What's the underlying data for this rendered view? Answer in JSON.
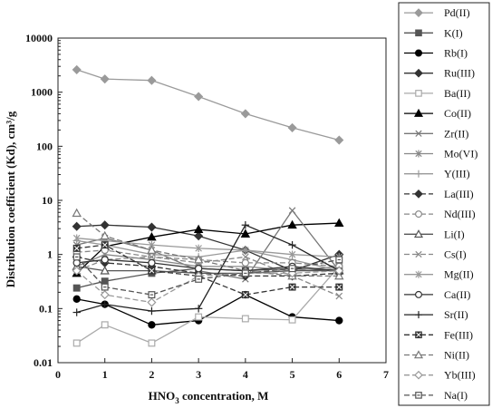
{
  "chart_data": {
    "type": "line",
    "title": "",
    "xlabel_main": "HNO",
    "xlabel_sub": "3",
    "xlabel_rest": " concentration, M",
    "ylabel": "Distribution coefficient (Kd), cm³/g",
    "xlim": [
      0,
      7
    ],
    "ylim": [
      0.01,
      10000
    ],
    "yscale": "log",
    "grid": "none",
    "legend_position": "right",
    "x_ticks": [
      "0",
      "1",
      "2",
      "3",
      "4",
      "5",
      "6",
      "7"
    ],
    "y_ticks": [
      "0.01",
      "0.1",
      "1",
      "10",
      "100",
      "1000",
      "10000"
    ],
    "x": [
      0.4,
      1,
      2,
      3,
      4,
      5,
      6
    ],
    "series": [
      {
        "name": "Pd(II)",
        "marker": "diamond-filled",
        "color": "#9a9a9a",
        "dash": "",
        "values": [
          2600,
          1750,
          1650,
          830,
          400,
          220,
          130
        ]
      },
      {
        "name": "K(I)",
        "marker": "square-filled",
        "color": "#555555",
        "dash": "",
        "values": [
          0.24,
          0.32,
          0.45,
          0.55,
          0.5,
          0.55,
          0.5
        ]
      },
      {
        "name": "Rb(I)",
        "marker": "circle-filled",
        "color": "#000000",
        "dash": "",
        "values": [
          0.15,
          0.12,
          0.05,
          0.06,
          0.18,
          0.07,
          0.06
        ]
      },
      {
        "name": "Ru(III)",
        "marker": "diamond-filled",
        "color": "#333333",
        "dash": "",
        "values": [
          3.3,
          3.5,
          3.2,
          2.2,
          1.2,
          0.5,
          1.0
        ]
      },
      {
        "name": "Ba(II)",
        "marker": "square-open",
        "color": "#aaaaaa",
        "dash": "",
        "values": [
          0.023,
          0.05,
          0.023,
          0.07,
          0.065,
          0.062,
          0.6
        ]
      },
      {
        "name": "Co(II)",
        "marker": "triangle-filled",
        "color": "#000000",
        "dash": "",
        "values": [
          0.45,
          1.4,
          2.1,
          2.9,
          2.4,
          3.5,
          3.8
        ]
      },
      {
        "name": "Zr(II)",
        "marker": "x",
        "color": "#777777",
        "dash": "",
        "values": [
          1.5,
          2.0,
          1.2,
          0.5,
          0.35,
          6.5,
          0.5
        ]
      },
      {
        "name": "Mo(VI)",
        "marker": "asterisk",
        "color": "#888888",
        "dash": "",
        "values": [
          0.6,
          1.0,
          0.8,
          0.6,
          0.6,
          0.5,
          0.6
        ]
      },
      {
        "name": "Y(III)",
        "marker": "plus",
        "color": "#999999",
        "dash": "",
        "values": [
          1.8,
          1.5,
          1.0,
          0.9,
          1.2,
          0.8,
          0.5
        ]
      },
      {
        "name": "La(III)",
        "marker": "diamond-filled",
        "color": "#333333",
        "dash": "6,3",
        "values": [
          0.9,
          0.7,
          0.6,
          0.45,
          0.4,
          0.4,
          0.45
        ]
      },
      {
        "name": "Nd(III)",
        "marker": "circle-open",
        "color": "#888888",
        "dash": "6,3",
        "values": [
          1.1,
          1.2,
          0.9,
          0.8,
          0.7,
          0.7,
          0.6
        ]
      },
      {
        "name": "Li(I)",
        "marker": "triangle-open",
        "color": "#555555",
        "dash": "",
        "values": [
          0.6,
          0.5,
          0.5,
          0.45,
          0.45,
          0.5,
          0.5
        ]
      },
      {
        "name": "Cs(I)",
        "marker": "x",
        "color": "#888888",
        "dash": "6,3",
        "values": [
          0.5,
          0.8,
          0.9,
          0.7,
          0.9,
          0.4,
          0.17
        ]
      },
      {
        "name": "Mg(II)",
        "marker": "asterisk",
        "color": "#999999",
        "dash": "",
        "values": [
          2.0,
          1.8,
          1.5,
          1.3,
          1.2,
          1.0,
          0.9
        ]
      },
      {
        "name": "Ca(II)",
        "marker": "circle-open",
        "color": "#333333",
        "dash": "",
        "values": [
          0.7,
          0.8,
          0.7,
          0.55,
          0.5,
          0.6,
          0.5
        ]
      },
      {
        "name": "Sr(II)",
        "marker": "plus",
        "color": "#222222",
        "dash": "",
        "values": [
          0.085,
          0.12,
          0.09,
          0.1,
          3.5,
          1.5,
          0.5
        ]
      },
      {
        "name": "Fe(III)",
        "marker": "square-x",
        "color": "#333333",
        "dash": "6,3",
        "values": [
          1.3,
          1.5,
          0.5,
          0.4,
          0.18,
          0.25,
          0.25
        ]
      },
      {
        "name": "Ni(II)",
        "marker": "triangle-open",
        "color": "#777777",
        "dash": "6,3",
        "values": [
          5.8,
          2.2,
          1.2,
          0.8,
          0.5,
          0.4,
          0.4
        ]
      },
      {
        "name": "Yb(III)",
        "marker": "diamond-open",
        "color": "#999999",
        "dash": "6,3",
        "values": [
          0.5,
          0.18,
          0.13,
          0.4,
          0.45,
          0.45,
          0.5
        ]
      },
      {
        "name": "Na(I)",
        "marker": "square-open-dot",
        "color": "#555555",
        "dash": "6,3",
        "values": [
          0.9,
          0.25,
          0.18,
          0.35,
          0.45,
          0.55,
          0.8
        ]
      }
    ]
  }
}
